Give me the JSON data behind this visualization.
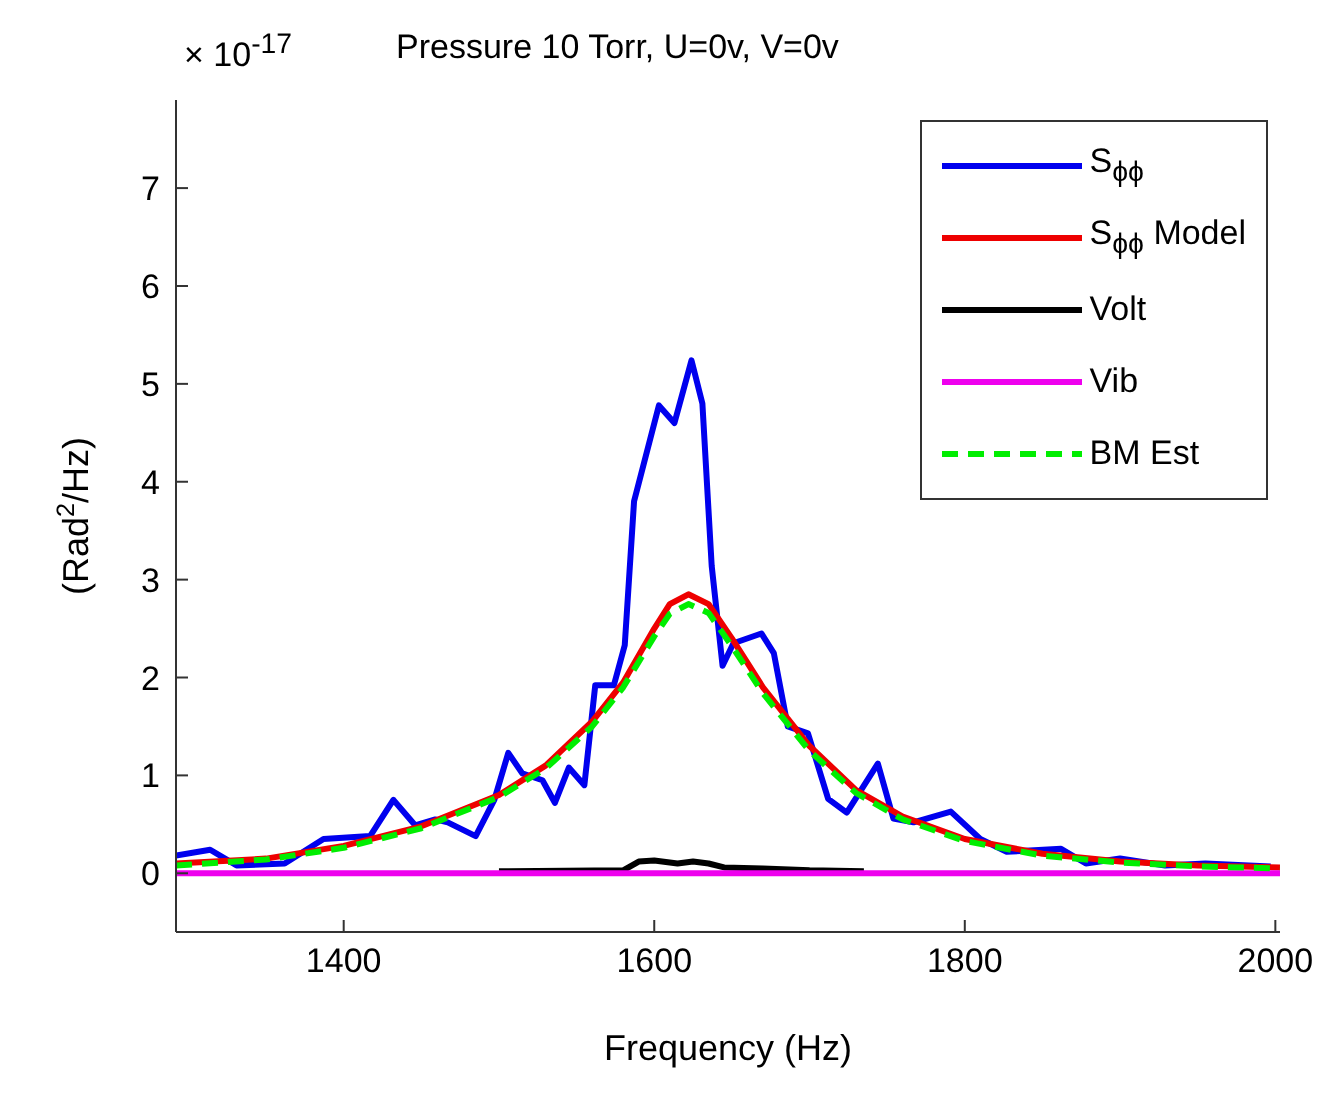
{
  "chart_data": {
    "type": "line",
    "title": "Pressure 10 Torr, U=0v, V=0v",
    "xlabel": "Frequency (Hz)",
    "ylabel": "(Rad$^{2}$/Hz)",
    "annotations": [
      "× 10$^{-17}$"
    ],
    "xlim": [
      1292,
      2003
    ],
    "xticks": [
      1400,
      1600,
      1800,
      2000
    ],
    "ylim": [
      -0.6,
      7.9
    ],
    "yticks": [
      0,
      1,
      2,
      3,
      4,
      5,
      6,
      7
    ],
    "legend": "top right",
    "marker": "none",
    "series": [
      {
        "name": "S$_{ϕϕ}$",
        "color": "#0000ee",
        "x": [
          1292,
          1314,
          1331,
          1362,
          1387,
          1417,
          1432,
          1446,
          1459,
          1467,
          1485,
          1497,
          1506,
          1515,
          1528,
          1536,
          1545,
          1555,
          1562,
          1574,
          1581,
          1587,
          1603,
          1613,
          1624,
          1631,
          1637,
          1644,
          1651,
          1669,
          1677,
          1686,
          1699,
          1712,
          1724,
          1744,
          1754,
          1767,
          1791,
          1810,
          1827,
          1862,
          1878,
          1900,
          1929,
          1955,
          1997
        ],
        "values": [
          0.18,
          0.24,
          0.08,
          0.1,
          0.35,
          0.38,
          0.75,
          0.49,
          0.55,
          0.52,
          0.38,
          0.75,
          1.23,
          1.02,
          0.95,
          0.72,
          1.08,
          0.9,
          1.92,
          1.92,
          2.33,
          3.8,
          4.78,
          4.6,
          5.24,
          4.8,
          3.14,
          2.12,
          2.35,
          2.45,
          2.25,
          1.5,
          1.43,
          0.76,
          0.62,
          1.12,
          0.56,
          0.52,
          0.63,
          0.35,
          0.22,
          0.25,
          0.1,
          0.15,
          0.08,
          0.1,
          0.07
        ]
      },
      {
        "name": "S$_{ϕϕ}$ Model",
        "color": "#ee0000",
        "x": [
          1292,
          1350,
          1400,
          1450,
          1500,
          1530,
          1560,
          1580,
          1600,
          1610,
          1622,
          1635,
          1650,
          1670,
          1700,
          1730,
          1760,
          1800,
          1850,
          1900,
          1950,
          2003
        ],
        "values": [
          0.1,
          0.15,
          0.28,
          0.48,
          0.8,
          1.1,
          1.55,
          1.95,
          2.5,
          2.75,
          2.85,
          2.75,
          2.4,
          1.9,
          1.3,
          0.85,
          0.58,
          0.35,
          0.2,
          0.12,
          0.08,
          0.06
        ]
      },
      {
        "name": "Volt",
        "color": "#000000",
        "x": [
          1500,
          1580,
          1590,
          1600,
          1615,
          1625,
          1635,
          1645,
          1670,
          1700,
          1735
        ],
        "values": [
          0.02,
          0.03,
          0.12,
          0.13,
          0.1,
          0.12,
          0.1,
          0.06,
          0.05,
          0.03,
          0.02
        ]
      },
      {
        "name": "Vib",
        "color": "#ee00ee",
        "x": [
          1292,
          2003
        ],
        "values": [
          0,
          0
        ]
      },
      {
        "name": "BM Est",
        "color": "#00ee00",
        "line_style": "dashed",
        "x": [
          1292,
          1350,
          1400,
          1450,
          1500,
          1530,
          1560,
          1580,
          1600,
          1610,
          1622,
          1635,
          1650,
          1670,
          1700,
          1730,
          1760,
          1800,
          1850,
          1900,
          1950,
          2003
        ],
        "values": [
          0.08,
          0.14,
          0.26,
          0.46,
          0.78,
          1.07,
          1.5,
          1.9,
          2.42,
          2.65,
          2.75,
          2.66,
          2.32,
          1.84,
          1.25,
          0.82,
          0.55,
          0.33,
          0.18,
          0.11,
          0.07,
          0.05
        ]
      }
    ]
  }
}
